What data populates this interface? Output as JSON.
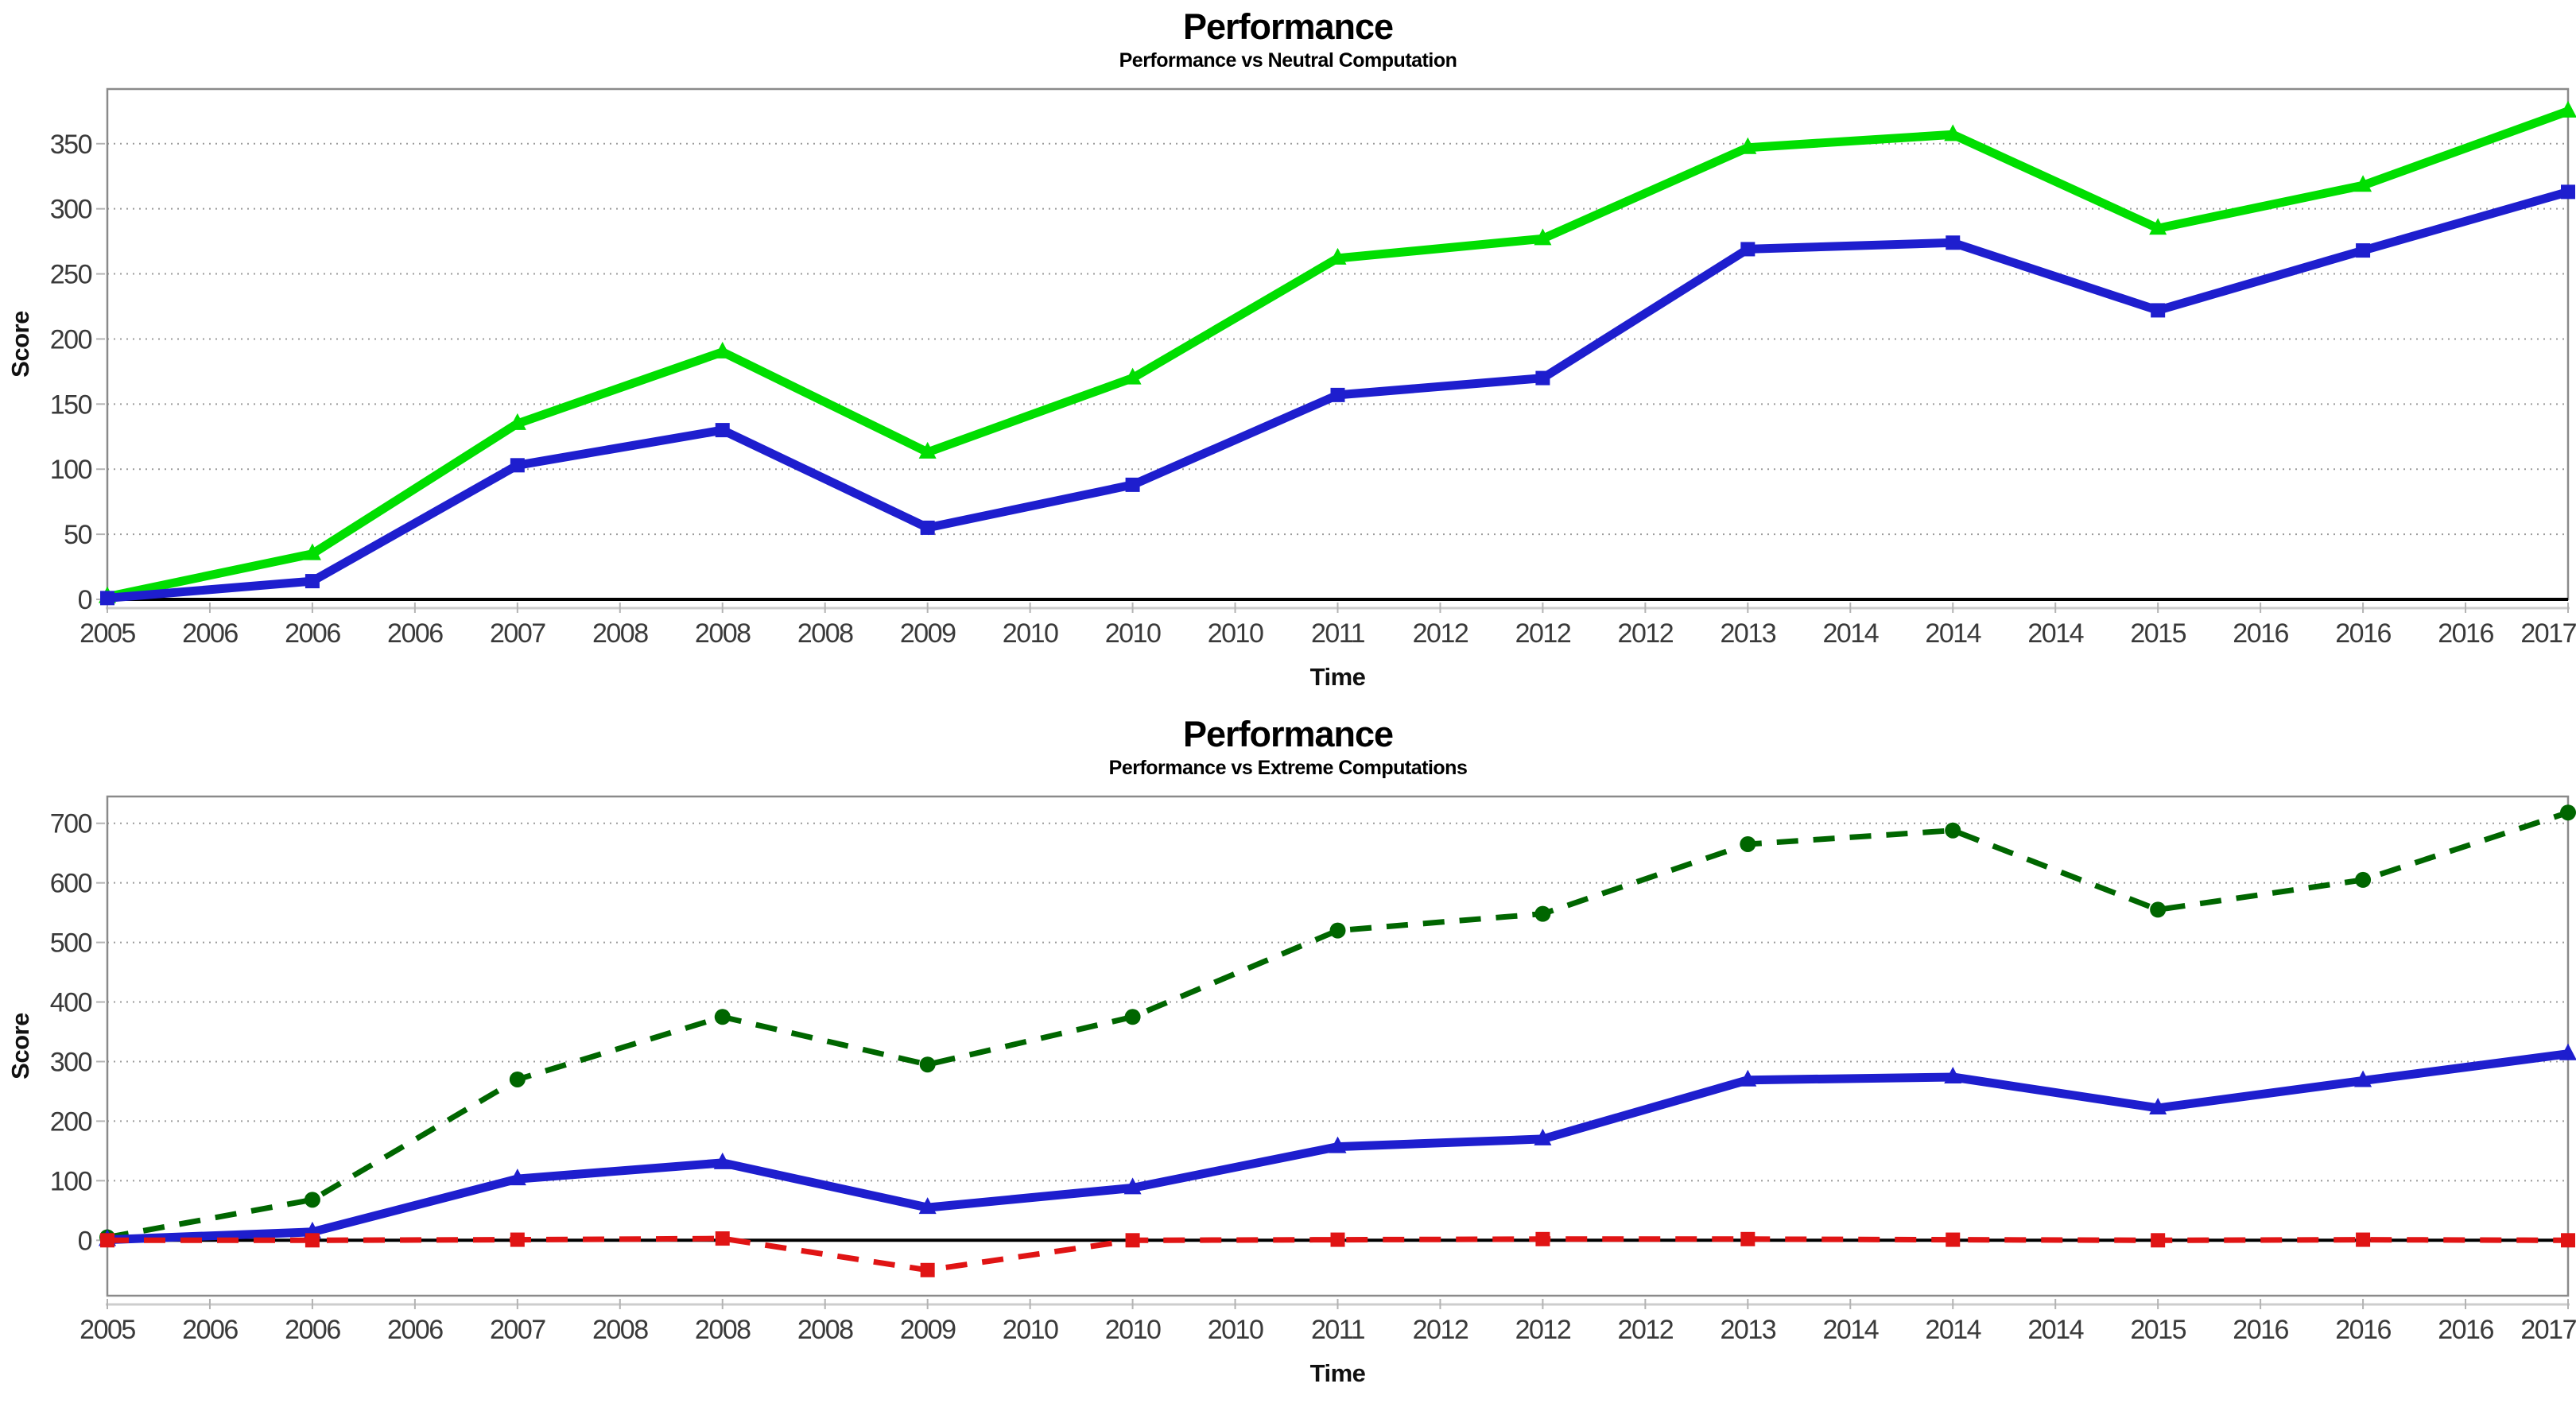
{
  "page": {
    "background": "#ffffff"
  },
  "chart_data": [
    {
      "type": "line",
      "title": "Performance",
      "subtitle": "Performance vs Neutral Computation",
      "xlabel": "Time",
      "ylabel": "Score",
      "xlim": [
        2005,
        2017
      ],
      "x_tick_step": 0.5,
      "x_tick_labels": [
        "2005",
        "2006",
        "2006",
        "2006",
        "2007",
        "2008",
        "2008",
        "2008",
        "2009",
        "2010",
        "2010",
        "2010",
        "2011",
        "2012",
        "2012",
        "2012",
        "2013",
        "2014",
        "2014",
        "2014",
        "2015",
        "2016",
        "2016",
        "2016",
        "2017"
      ],
      "x": [
        2005,
        2006,
        2007,
        2008,
        2009,
        2010,
        2011,
        2012,
        2013,
        2014,
        2015,
        2016,
        2017
      ],
      "y_ticks": [
        0,
        50,
        100,
        150,
        200,
        250,
        300,
        350
      ],
      "ylim": [
        0,
        392
      ],
      "grid": "dotted-horizontal",
      "legend": "none",
      "zero_line": true,
      "series": [
        {
          "name": "green-solid",
          "color": "#00DE00",
          "line": "solid",
          "width": 11,
          "marker": "triangle",
          "values": [
            2,
            35,
            135,
            190,
            113,
            170,
            262,
            277,
            347,
            357,
            285,
            318,
            375
          ]
        },
        {
          "name": "blue-solid",
          "color": "#1E1ECE",
          "line": "solid",
          "width": 11,
          "marker": "square",
          "values": [
            1,
            14,
            103,
            130,
            55,
            88,
            157,
            170,
            269,
            274,
            222,
            268,
            313
          ]
        }
      ]
    },
    {
      "type": "line",
      "title": "Performance",
      "subtitle": "Performance vs Extreme Computations",
      "xlabel": "Time",
      "ylabel": "Score",
      "xlim": [
        2005,
        2017
      ],
      "x_tick_step": 0.5,
      "x_tick_labels": [
        "2005",
        "2006",
        "2006",
        "2006",
        "2007",
        "2008",
        "2008",
        "2008",
        "2009",
        "2010",
        "2010",
        "2010",
        "2011",
        "2012",
        "2012",
        "2012",
        "2013",
        "2014",
        "2014",
        "2014",
        "2015",
        "2016",
        "2016",
        "2016",
        "2017"
      ],
      "x": [
        2005,
        2006,
        2007,
        2008,
        2009,
        2010,
        2011,
        2012,
        2013,
        2014,
        2015,
        2016,
        2017
      ],
      "y_ticks": [
        0,
        100,
        200,
        300,
        400,
        500,
        600,
        700
      ],
      "ylim": [
        -93,
        745
      ],
      "grid": "dotted-horizontal",
      "legend": "none",
      "zero_line": true,
      "series": [
        {
          "name": "dark-green-dashed",
          "color": "#006600",
          "line": "dashed",
          "width": 7,
          "marker": "circle",
          "values": [
            5,
            68,
            270,
            375,
            295,
            375,
            520,
            548,
            665,
            688,
            555,
            605,
            718
          ]
        },
        {
          "name": "blue-solid",
          "color": "#1E1ECE",
          "line": "solid",
          "width": 11,
          "marker": "triangle",
          "values": [
            1,
            14,
            103,
            130,
            55,
            88,
            157,
            170,
            269,
            274,
            222,
            268,
            313
          ]
        },
        {
          "name": "red-dashed",
          "color": "#E01414",
          "line": "dashed",
          "width": 7,
          "marker": "square",
          "values": [
            0,
            0,
            1,
            3,
            -50,
            0,
            1,
            2,
            2,
            1,
            0,
            1,
            0
          ]
        }
      ]
    }
  ]
}
